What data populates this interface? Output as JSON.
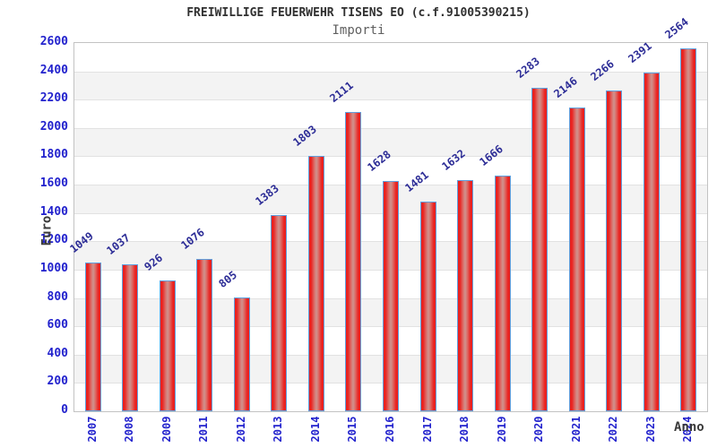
{
  "header": {
    "title": "FREIWILLIGE FEUERWEHR TISENS EO (c.f.91005390215)",
    "subtitle": "Importi"
  },
  "chart_data": {
    "type": "bar",
    "title": "FREIWILLIGE FEUERWEHR TISENS EO (c.f.91005390215)",
    "subtitle": "Importi",
    "xlabel": "Anno",
    "ylabel": "Euro",
    "categories": [
      "2007",
      "2008",
      "2009",
      "2011",
      "2012",
      "2013",
      "2014",
      "2015",
      "2016",
      "2017",
      "2018",
      "2019",
      "2020",
      "2021",
      "2022",
      "2023",
      "2024"
    ],
    "values": [
      1049,
      1037,
      926,
      1076,
      805,
      1383,
      1803,
      2111,
      1628,
      1481,
      1632,
      1666,
      2283,
      2146,
      2266,
      2391,
      2564
    ],
    "ylim": [
      0,
      2600
    ],
    "ytick_step": 200,
    "grid": "horizontal-bands",
    "legend_position": "none",
    "colors": {
      "bar_edge_red": "#ea1f1c",
      "bar_center": "#cf938e",
      "bar_border_blue": "#60a0de",
      "tick_label_blue": "#2222cd",
      "value_label_navy": "#2c2c96",
      "band_gray": "#f3f3f3",
      "gridline": "#e2e2e2",
      "plot_border": "#c3c3c3",
      "title_color": "#303030",
      "subtitle_color": "#5f5f5f"
    }
  }
}
